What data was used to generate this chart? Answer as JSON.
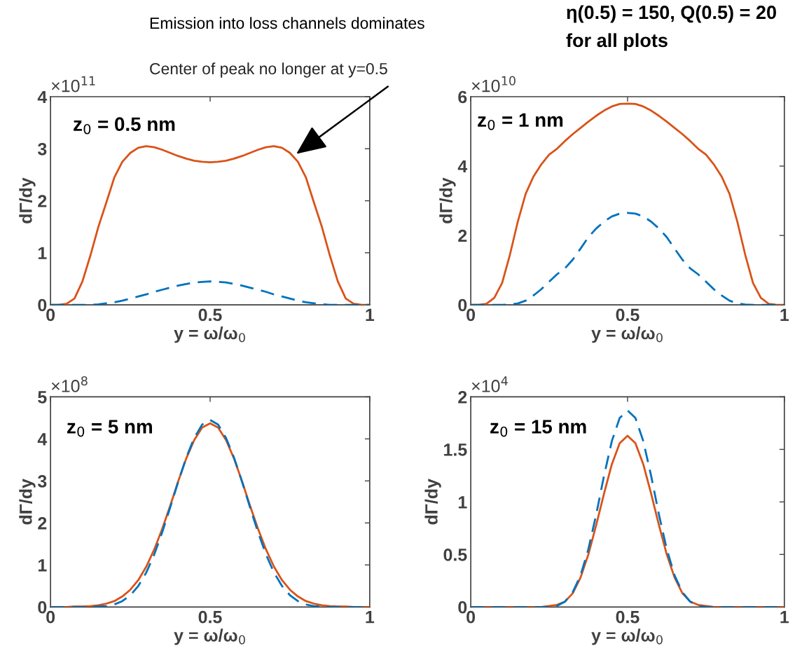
{
  "chart_data": [
    {
      "type": "line",
      "xlabel": "y = ω/ω$_{0}$",
      "ylabel": "dΓ/dy",
      "xlim": [
        0,
        1
      ],
      "ylim": [
        0,
        4
      ],
      "xticks": [
        0,
        0.5,
        1
      ],
      "yticks": [
        0,
        1,
        2,
        3,
        4
      ],
      "grid": false,
      "x": [
        0,
        0.025,
        0.05,
        0.075,
        0.1,
        0.125,
        0.15,
        0.175,
        0.2,
        0.225,
        0.25,
        0.275,
        0.3,
        0.325,
        0.35,
        0.375,
        0.4,
        0.425,
        0.45,
        0.475,
        0.5,
        0.525,
        0.55,
        0.575,
        0.6,
        0.625,
        0.65,
        0.675,
        0.7,
        0.725,
        0.75,
        0.775,
        0.8,
        0.825,
        0.85,
        0.875,
        0.9,
        0.925,
        0.95,
        0.975,
        1
      ],
      "series": [
        {
          "color": "#0072bd",
          "line_style": "dashed",
          "values": [
            0,
            0,
            0,
            0,
            0,
            0,
            0.01,
            0.03,
            0.05,
            0.08,
            0.12,
            0.16,
            0.2,
            0.25,
            0.29,
            0.33,
            0.37,
            0.4,
            0.43,
            0.44,
            0.45,
            0.44,
            0.43,
            0.4,
            0.37,
            0.33,
            0.29,
            0.25,
            0.2,
            0.16,
            0.12,
            0.08,
            0.05,
            0.03,
            0.01,
            0,
            0,
            0,
            0,
            0,
            0
          ]
        },
        {
          "color": "#d95319",
          "line_style": "solid",
          "values": [
            0,
            0,
            0.02,
            0.12,
            0.45,
            0.95,
            1.5,
            1.97,
            2.45,
            2.75,
            2.92,
            3.02,
            3.05,
            3.03,
            2.98,
            2.92,
            2.86,
            2.81,
            2.77,
            2.75,
            2.74,
            2.75,
            2.77,
            2.81,
            2.86,
            2.92,
            2.98,
            3.03,
            3.05,
            3.02,
            2.92,
            2.75,
            2.45,
            1.97,
            1.5,
            0.95,
            0.45,
            0.12,
            0.02,
            0,
            0
          ]
        }
      ],
      "annotations": [
        "Emission into loss channels dominates",
        {
          "text": "Center of peak no longer at y=0.5",
          "x": 0.77,
          "y": 2.9
        },
        "×10$^{11}$",
        "z$_{0}$ = 0.5 nm"
      ]
    },
    {
      "type": "line",
      "xlabel": "y = ω/ω$_{0}$",
      "ylabel": "dΓ/dy",
      "xlim": [
        0,
        1
      ],
      "ylim": [
        0,
        6
      ],
      "xticks": [
        0,
        0.5,
        1
      ],
      "yticks": [
        0,
        2,
        4,
        6
      ],
      "grid": false,
      "x": [
        0,
        0.025,
        0.05,
        0.075,
        0.1,
        0.125,
        0.15,
        0.175,
        0.2,
        0.225,
        0.25,
        0.275,
        0.3,
        0.325,
        0.35,
        0.375,
        0.4,
        0.425,
        0.45,
        0.475,
        0.5,
        0.525,
        0.55,
        0.575,
        0.6,
        0.625,
        0.65,
        0.675,
        0.7,
        0.725,
        0.75,
        0.775,
        0.8,
        0.825,
        0.85,
        0.875,
        0.9,
        0.925,
        0.95,
        0.975,
        1
      ],
      "series": [
        {
          "color": "#0072bd",
          "line_style": "dashed",
          "values": [
            0,
            0,
            0,
            0,
            0,
            0.01,
            0.04,
            0.12,
            0.27,
            0.45,
            0.67,
            0.88,
            1.05,
            1.3,
            1.62,
            1.95,
            2.2,
            2.4,
            2.55,
            2.63,
            2.65,
            2.63,
            2.55,
            2.4,
            2.2,
            1.95,
            1.62,
            1.3,
            1.05,
            0.88,
            0.67,
            0.45,
            0.27,
            0.12,
            0.04,
            0.01,
            0,
            0,
            0,
            0,
            0
          ]
        },
        {
          "color": "#d95319",
          "line_style": "solid",
          "values": [
            0,
            0,
            0.03,
            0.2,
            0.63,
            1.45,
            2.4,
            3.2,
            3.7,
            4.05,
            4.33,
            4.5,
            4.72,
            4.92,
            5.1,
            5.28,
            5.45,
            5.6,
            5.72,
            5.79,
            5.8,
            5.79,
            5.72,
            5.6,
            5.45,
            5.28,
            5.1,
            4.92,
            4.72,
            4.5,
            4.33,
            4.05,
            3.7,
            3.2,
            2.4,
            1.45,
            0.63,
            0.2,
            0.03,
            0,
            0
          ]
        }
      ],
      "annotations": [
        "η(0.5) = 150, Q(0.5) = 20",
        "for all plots",
        "×10$^{10}$",
        "z$_{0}$ = 1 nm"
      ]
    },
    {
      "type": "line",
      "xlabel": "y = ω/ω$_{0}$",
      "ylabel": "dΓ/dy",
      "xlim": [
        0,
        1
      ],
      "ylim": [
        0,
        5
      ],
      "xticks": [
        0,
        0.5,
        1
      ],
      "yticks": [
        0,
        1,
        2,
        3,
        4,
        5
      ],
      "grid": false,
      "x": [
        0,
        0.025,
        0.05,
        0.075,
        0.1,
        0.125,
        0.15,
        0.175,
        0.2,
        0.225,
        0.25,
        0.275,
        0.3,
        0.325,
        0.35,
        0.375,
        0.4,
        0.425,
        0.45,
        0.475,
        0.5,
        0.525,
        0.55,
        0.575,
        0.6,
        0.625,
        0.65,
        0.675,
        0.7,
        0.725,
        0.75,
        0.775,
        0.8,
        0.825,
        0.85,
        0.875,
        0.9,
        0.925,
        0.95,
        0.975,
        1
      ],
      "series": [
        {
          "color": "#0072bd",
          "line_style": "dashed",
          "values": [
            0,
            0,
            0,
            0,
            0,
            0,
            0.01,
            0.02,
            0.06,
            0.14,
            0.28,
            0.5,
            0.82,
            1.25,
            1.78,
            2.37,
            2.98,
            3.55,
            4.02,
            4.34,
            4.45,
            4.34,
            4.02,
            3.55,
            2.98,
            2.37,
            1.78,
            1.25,
            0.82,
            0.5,
            0.28,
            0.14,
            0.06,
            0.02,
            0.01,
            0,
            0,
            0,
            0,
            0,
            0
          ]
        },
        {
          "color": "#d95319",
          "line_style": "solid",
          "values": [
            0,
            0,
            0,
            0.01,
            0.01,
            0.02,
            0.04,
            0.08,
            0.14,
            0.25,
            0.41,
            0.64,
            0.96,
            1.37,
            1.86,
            2.41,
            2.99,
            3.53,
            3.97,
            4.27,
            4.37,
            4.27,
            3.97,
            3.53,
            2.99,
            2.41,
            1.86,
            1.37,
            0.96,
            0.64,
            0.41,
            0.25,
            0.14,
            0.08,
            0.04,
            0.02,
            0.01,
            0.01,
            0,
            0,
            0
          ]
        }
      ],
      "annotations": [
        "×10$^{8}$",
        "z$_{0}$ = 5 nm"
      ]
    },
    {
      "type": "line",
      "xlabel": "y = ω/ω$_{0}$",
      "ylabel": "dΓ/dy",
      "xlim": [
        0,
        1
      ],
      "ylim": [
        0,
        2
      ],
      "xticks": [
        0,
        0.5,
        1
      ],
      "yticks": [
        0,
        0.5,
        1,
        1.5,
        2
      ],
      "grid": false,
      "x": [
        0,
        0.025,
        0.05,
        0.075,
        0.1,
        0.125,
        0.15,
        0.175,
        0.2,
        0.225,
        0.25,
        0.275,
        0.3,
        0.325,
        0.35,
        0.375,
        0.4,
        0.425,
        0.45,
        0.475,
        0.5,
        0.525,
        0.55,
        0.575,
        0.6,
        0.625,
        0.65,
        0.675,
        0.7,
        0.725,
        0.75,
        0.775,
        0.8,
        0.825,
        0.85,
        0.875,
        0.9,
        0.925,
        0.95,
        0.975,
        1
      ],
      "series": [
        {
          "color": "#0072bd",
          "line_style": "dashed",
          "values": [
            0,
            0,
            0,
            0,
            0,
            0,
            0,
            0,
            0,
            0,
            0,
            0.01,
            0.05,
            0.14,
            0.3,
            0.55,
            0.88,
            1.25,
            1.58,
            1.8,
            1.87,
            1.8,
            1.58,
            1.25,
            0.88,
            0.55,
            0.3,
            0.14,
            0.05,
            0.01,
            0,
            0,
            0,
            0,
            0,
            0,
            0,
            0,
            0,
            0,
            0
          ]
        },
        {
          "color": "#d95319",
          "line_style": "solid",
          "values": [
            0,
            0,
            0,
            0,
            0,
            0,
            0,
            0,
            0,
            0,
            0.01,
            0.02,
            0.05,
            0.13,
            0.28,
            0.5,
            0.78,
            1.08,
            1.36,
            1.56,
            1.63,
            1.56,
            1.36,
            1.08,
            0.78,
            0.5,
            0.28,
            0.13,
            0.05,
            0.02,
            0.01,
            0,
            0,
            0,
            0,
            0,
            0,
            0,
            0,
            0,
            0
          ]
        }
      ],
      "annotations": [
        "×10$^{4}$",
        "z$_{0}$ = 15 nm"
      ]
    }
  ]
}
